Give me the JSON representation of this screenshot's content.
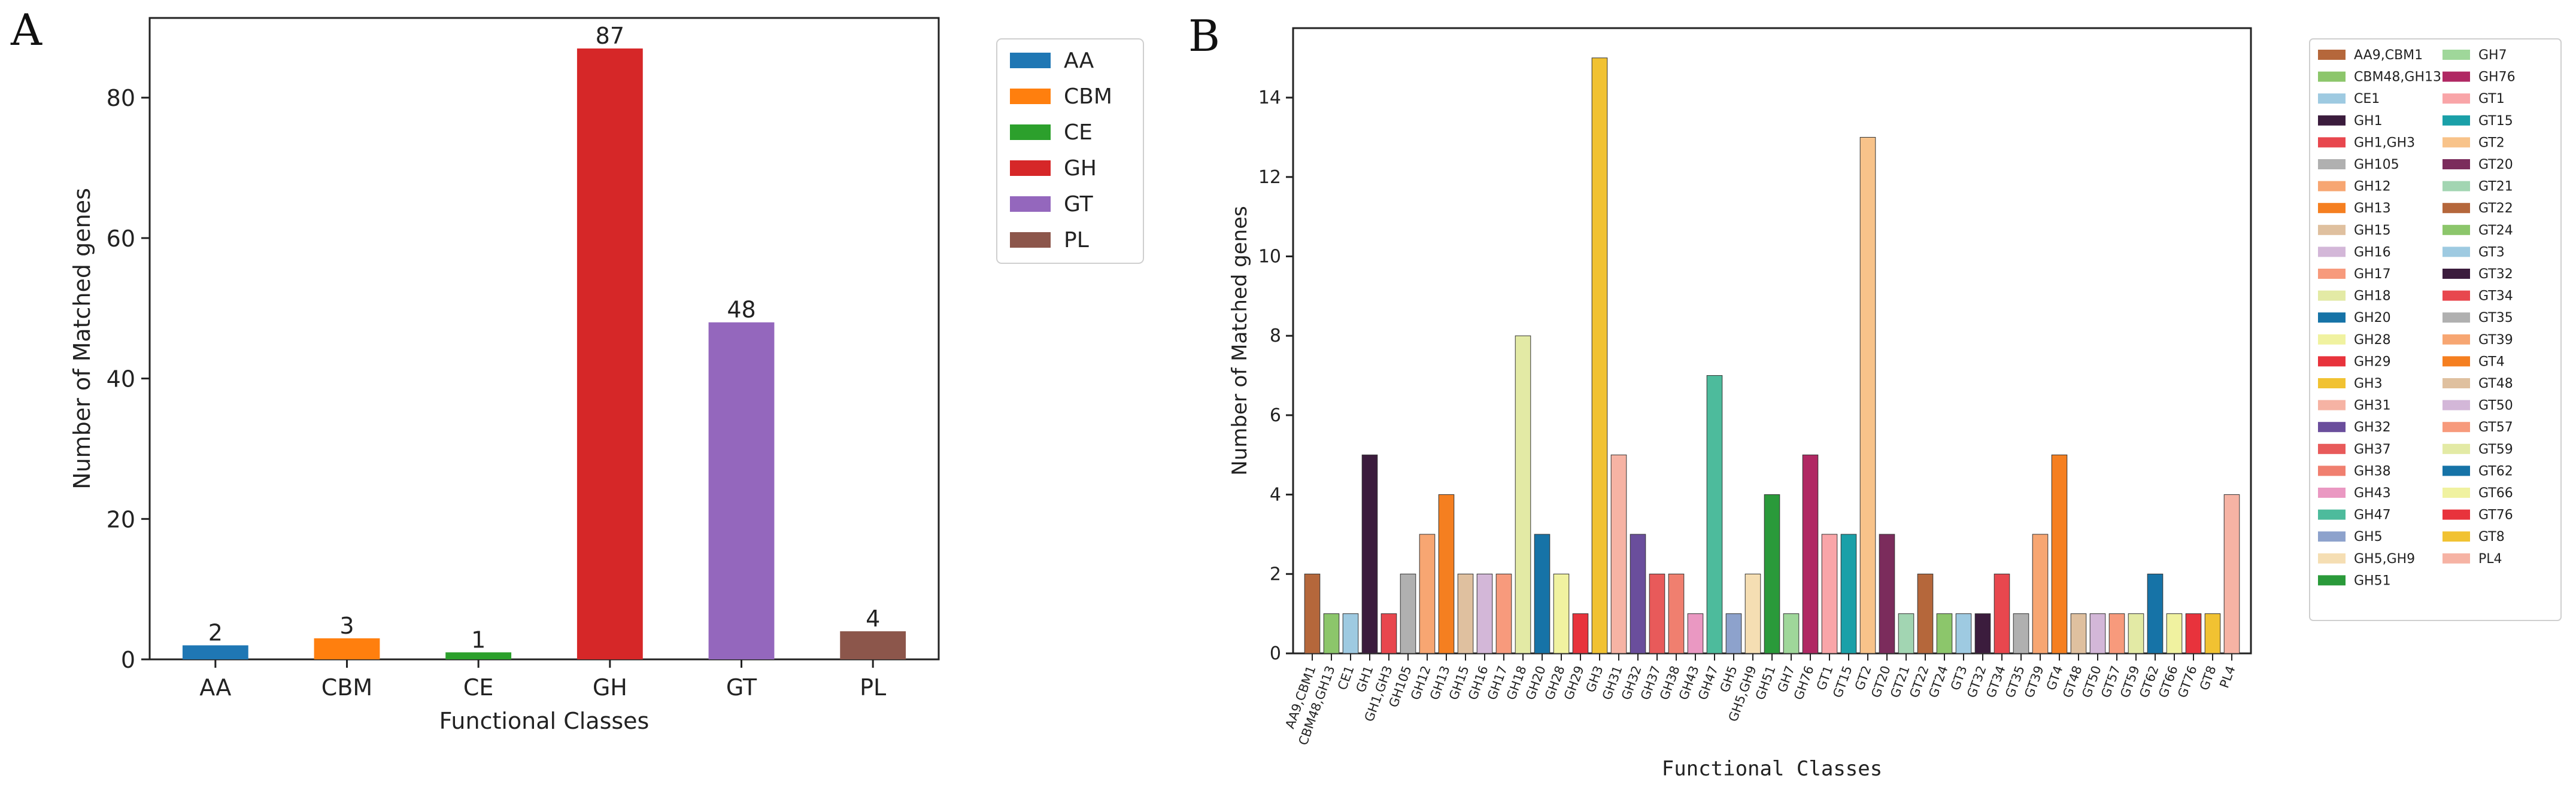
{
  "chart_data": [
    {
      "panel": "A",
      "type": "bar",
      "title": "",
      "xlabel": "Functional Classes",
      "ylabel": "Number of Matched genes",
      "ylim": [
        0,
        91.35
      ],
      "yticks": [
        0,
        20,
        40,
        60,
        80
      ],
      "grid": false,
      "legend_position": "right-outside",
      "categories": [
        "AA",
        "CBM",
        "CE",
        "GH",
        "GT",
        "PL"
      ],
      "values": [
        2,
        3,
        1,
        87,
        48,
        4
      ],
      "colors": [
        "#1f77b4",
        "#ff7f0e",
        "#2ca02c",
        "#d62728",
        "#9467bd",
        "#8c564b"
      ],
      "data_labels": [
        "2",
        "3",
        "1",
        "87",
        "48",
        "4"
      ],
      "legend": [
        "AA",
        "CBM",
        "CE",
        "GH",
        "GT",
        "PL"
      ]
    },
    {
      "panel": "B",
      "type": "bar",
      "title": "",
      "xlabel": "Functional Classes",
      "ylabel": "Number of Matched genes",
      "ylim": [
        0,
        15.75
      ],
      "yticks": [
        0,
        2,
        4,
        6,
        8,
        10,
        12,
        14
      ],
      "grid": false,
      "legend_position": "right-outside",
      "categories": [
        "AA9,CBM1",
        "CBM48,GH13",
        "CE1",
        "GH1",
        "GH1,GH3",
        "GH105",
        "GH12",
        "GH13",
        "GH15",
        "GH16",
        "GH17",
        "GH18",
        "GH20",
        "GH28",
        "GH29",
        "GH3",
        "GH31",
        "GH32",
        "GH37",
        "GH38",
        "GH43",
        "GH47",
        "GH5",
        "GH5,GH9",
        "GH51",
        "GH7",
        "GH76",
        "GT1",
        "GT15",
        "GT2",
        "GT20",
        "GT21",
        "GT22",
        "GT24",
        "GT3",
        "GT32",
        "GT34",
        "GT35",
        "GT39",
        "GT4",
        "GT48",
        "GT50",
        "GT57",
        "GT59",
        "GT62",
        "GT66",
        "GT76",
        "GT8",
        "PL4"
      ],
      "values": [
        2,
        1,
        1,
        5,
        1,
        2,
        3,
        4,
        2,
        2,
        2,
        8,
        3,
        2,
        1,
        15,
        5,
        3,
        2,
        2,
        1,
        7,
        1,
        2,
        4,
        1,
        5,
        3,
        3,
        13,
        3,
        1,
        2,
        1,
        1,
        1,
        2,
        1,
        3,
        5,
        1,
        1,
        1,
        1,
        2,
        1,
        1,
        1,
        4
      ],
      "colors": [
        "#b5673b",
        "#8cc66b",
        "#9ecae1",
        "#3b1c3d",
        "#e8474e",
        "#b0b0b0",
        "#f7a672",
        "#f57f20",
        "#dfc09f",
        "#d3b7d8",
        "#f79a7c",
        "#e3eaa5",
        "#1673a7",
        "#f0f2a0",
        "#e8333c",
        "#f1c232",
        "#f6b3a4",
        "#6a4e9c",
        "#e85a5a",
        "#f07f6f",
        "#ea98c2",
        "#4dbb9c",
        "#8da2cc",
        "#f5deb3",
        "#2a9a3a",
        "#9fd79a",
        "#b02863",
        "#f9a5a8",
        "#1aa0a8",
        "#f8c38a",
        "#7b2c5c",
        "#a2d5b2",
        "#b5673b",
        "#8cc66b",
        "#9ecae1",
        "#3b1c3d",
        "#e8474e",
        "#b0b0b0",
        "#f7a672",
        "#f57f20",
        "#dfc09f",
        "#d3b7d8",
        "#f79a7c",
        "#e3eaa5",
        "#1673a7",
        "#f0f2a0",
        "#e8333c",
        "#f1c232",
        "#f6b3a4"
      ]
    }
  ],
  "panels": {
    "a_label": "A",
    "b_label": "B"
  }
}
